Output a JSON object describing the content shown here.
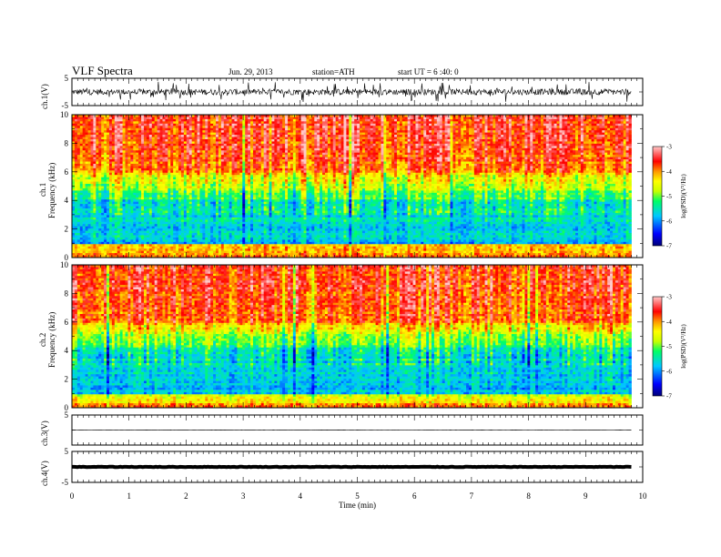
{
  "header": {
    "title": "VLF  Spectra",
    "date": "Jun. 29, 2013",
    "station": "station=ATH",
    "start": "start  UT =   6 :40: 0"
  },
  "chart_data": [
    {
      "type": "line",
      "ylabel": "ch.1(V)",
      "ylim": [
        -5,
        5
      ],
      "ytick_labels": [
        "5",
        "-5"
      ],
      "description": "noisy waveform centered near 0, amplitude about ±2 V with spikes"
    },
    {
      "type": "heatmap",
      "ylabel_lines": [
        "ch.1",
        "Frequency  (kHz)"
      ],
      "ylim": [
        0,
        10
      ],
      "ytick_labels": [
        "0",
        "2",
        "4",
        "6",
        "8",
        "10"
      ],
      "colorbar": {
        "label": "log(PSD)(V²/Hz)",
        "range": [
          -7,
          -3
        ],
        "tick_labels": [
          "-3",
          "-4",
          "-5",
          "-6",
          "-7"
        ],
        "colors": [
          "#000078",
          "#0000ff",
          "#00c8ff",
          "#00ff64",
          "#c8ff00",
          "#ffff00",
          "#ff9600",
          "#ff0000",
          "#ffc8c8"
        ]
      },
      "description": "red/orange above ~5 kHz, green/yellow 4–6 kHz, blue/cyan 1–4 kHz, bright bands below 1 kHz"
    },
    {
      "type": "heatmap",
      "ylabel_lines": [
        "ch.2",
        "Frequency  (kHz)"
      ],
      "ylim": [
        0,
        10
      ],
      "ytick_labels": [
        "0",
        "2",
        "4",
        "6",
        "8",
        "10"
      ],
      "colorbar": {
        "label": "log(PSD)(V²/Hz)",
        "range": [
          -7,
          -3
        ],
        "tick_labels": [
          "-3",
          "-4",
          "-5",
          "-6",
          "-7"
        ]
      },
      "description": "similar to ch.1; green/cyan banding 1–4 kHz, red/yellow near 0 kHz"
    },
    {
      "type": "line",
      "ylabel": "ch.3(V)",
      "ylim": [
        -5,
        5
      ],
      "ytick_labels": [
        "5"
      ],
      "description": "nearly flat line at about 0 V"
    },
    {
      "type": "line",
      "ylabel": "ch.4(V)",
      "ylim": [
        -5,
        5
      ],
      "ytick_labels": [
        "5",
        "-5"
      ],
      "description": "thick flat band at about 0 V"
    }
  ],
  "xaxis": {
    "xlabel": "Time  (min)",
    "xlim": [
      0,
      10
    ],
    "tick_labels": [
      "0",
      "1",
      "2",
      "3",
      "4",
      "5",
      "6",
      "7",
      "8",
      "9",
      "10"
    ],
    "data_end": 9.8
  },
  "colors": {
    "red": "#ff0000",
    "orange": "#ff9600",
    "yellow": "#ffff00",
    "green": "#00ff64",
    "cyan": "#00c8ff",
    "blue": "#0000ff",
    "navy": "#000078",
    "pink": "#ffc8c8"
  }
}
